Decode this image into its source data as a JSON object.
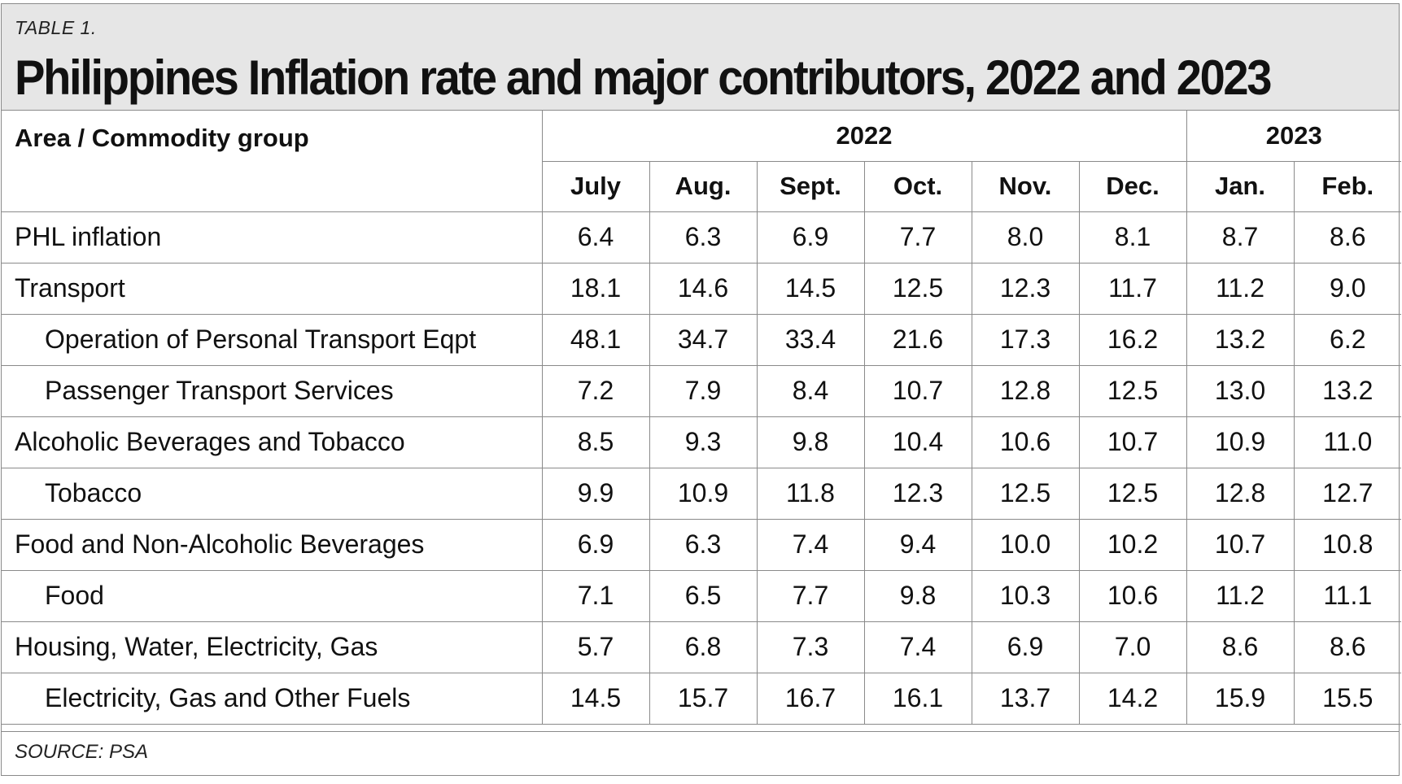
{
  "table_label": "TABLE 1.",
  "title": "Philippines Inflation rate and major contributors, 2022 and 2023",
  "header": {
    "label_column": "Area / Commodity group",
    "year_2022": "2022",
    "year_2023": "2023",
    "months": [
      "July",
      "Aug.",
      "Sept.",
      "Oct.",
      "Nov.",
      "Dec.",
      "Jan.",
      "Feb."
    ]
  },
  "rows": [
    {
      "label": "PHL inflation",
      "indent": false,
      "values": [
        "6.4",
        "6.3",
        "6.9",
        "7.7",
        "8.0",
        "8.1",
        "8.7",
        "8.6"
      ]
    },
    {
      "label": "Transport",
      "indent": false,
      "values": [
        "18.1",
        "14.6",
        "14.5",
        "12.5",
        "12.3",
        "11.7",
        "11.2",
        "9.0"
      ]
    },
    {
      "label": "Operation of Personal Transport Eqpt",
      "indent": true,
      "values": [
        "48.1",
        "34.7",
        "33.4",
        "21.6",
        "17.3",
        "16.2",
        "13.2",
        "6.2"
      ]
    },
    {
      "label": "Passenger Transport Services",
      "indent": true,
      "values": [
        "7.2",
        "7.9",
        "8.4",
        "10.7",
        "12.8",
        "12.5",
        "13.0",
        "13.2"
      ]
    },
    {
      "label": "Alcoholic Beverages and Tobacco",
      "indent": false,
      "values": [
        "8.5",
        "9.3",
        "9.8",
        "10.4",
        "10.6",
        "10.7",
        "10.9",
        "11.0"
      ]
    },
    {
      "label": "Tobacco",
      "indent": true,
      "values": [
        "9.9",
        "10.9",
        "11.8",
        "12.3",
        "12.5",
        "12.5",
        "12.8",
        "12.7"
      ]
    },
    {
      "label": "Food and Non-Alcoholic Beverages",
      "indent": false,
      "values": [
        "6.9",
        "6.3",
        "7.4",
        "9.4",
        "10.0",
        "10.2",
        "10.7",
        "10.8"
      ]
    },
    {
      "label": "Food",
      "indent": true,
      "values": [
        "7.1",
        "6.5",
        "7.7",
        "9.8",
        "10.3",
        "10.6",
        "11.2",
        "11.1"
      ]
    },
    {
      "label": "Housing, Water, Electricity, Gas",
      "indent": false,
      "values": [
        "5.7",
        "6.8",
        "7.3",
        "7.4",
        "6.9",
        "7.0",
        "8.6",
        "8.6"
      ]
    },
    {
      "label": "Electricity, Gas and Other Fuels",
      "indent": true,
      "values": [
        "14.5",
        "15.7",
        "16.7",
        "16.1",
        "13.7",
        "14.2",
        "15.9",
        "15.5"
      ]
    }
  ],
  "source": "SOURCE: PSA"
}
